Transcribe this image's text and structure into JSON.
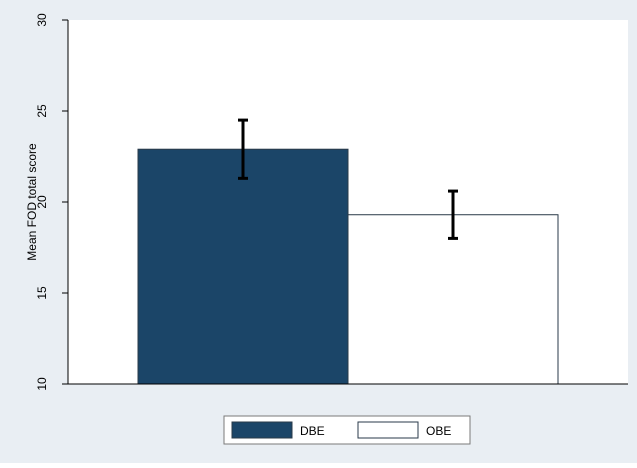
{
  "chart_data": {
    "type": "bar",
    "title": "",
    "xlabel": "",
    "ylabel": "Mean FOD total score",
    "ylim": [
      10,
      30
    ],
    "yticks": [
      10,
      15,
      20,
      25,
      30
    ],
    "grid": false,
    "legend_position": "bottom",
    "categories": [
      "DBE",
      "OBE"
    ],
    "series": [
      {
        "name": "DBE",
        "value": 22.9,
        "error_low": 21.3,
        "error_high": 24.5,
        "fill": "#1b4568"
      },
      {
        "name": "OBE",
        "value": 19.3,
        "error_low": 18.0,
        "error_high": 20.6,
        "fill": "#ffffff"
      }
    ]
  },
  "colors": {
    "outer_background": "#e9eef3",
    "plot_background": "#ffffff",
    "axis": "#000000",
    "bar_border": "#2a3a48"
  }
}
